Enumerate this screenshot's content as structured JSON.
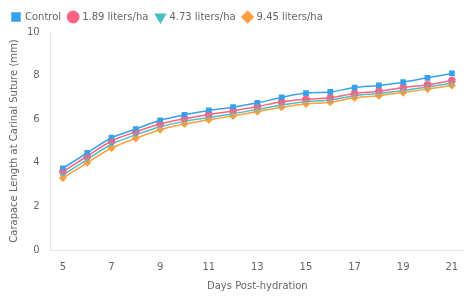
{
  "chart_data": {
    "type": "line",
    "x_label": "Days Post-hydration",
    "y_label": "Carapace Length at Carinal Suture (mm)",
    "x": [
      5,
      6,
      7,
      8,
      9,
      10,
      11,
      12,
      13,
      14,
      15,
      16,
      17,
      18,
      19,
      20,
      21
    ],
    "series": [
      {
        "name": "Control",
        "marker": "square",
        "values": [
          3.75,
          4.45,
          5.15,
          5.55,
          5.95,
          6.2,
          6.4,
          6.55,
          6.75,
          7.0,
          7.2,
          7.25,
          7.45,
          7.55,
          7.7,
          7.9,
          8.1
        ],
        "errors": [
          0.07,
          0.07,
          0.07,
          0.07,
          0.08,
          0.07,
          0.07,
          0.08,
          0.07,
          0.07,
          0.07,
          0.07,
          0.07,
          0.07,
          0.07,
          0.07,
          0.08
        ]
      },
      {
        "name": "1.89 liters/ha",
        "marker": "circle",
        "values": [
          3.6,
          4.3,
          5.0,
          5.42,
          5.78,
          6.02,
          6.22,
          6.38,
          6.58,
          6.8,
          6.92,
          6.98,
          7.18,
          7.28,
          7.45,
          7.58,
          7.78
        ],
        "errors": [
          0.07,
          0.07,
          0.07,
          0.07,
          0.07,
          0.07,
          0.07,
          0.07,
          0.07,
          0.07,
          0.07,
          0.07,
          0.07,
          0.07,
          0.07,
          0.07,
          0.07
        ]
      },
      {
        "name": "4.73 liters/ha",
        "marker": "triangle-down",
        "values": [
          3.45,
          4.15,
          4.85,
          5.28,
          5.65,
          5.9,
          6.08,
          6.25,
          6.45,
          6.65,
          6.8,
          6.88,
          7.08,
          7.18,
          7.32,
          7.48,
          7.65
        ],
        "errors": [
          0.07,
          0.07,
          0.07,
          0.07,
          0.07,
          0.07,
          0.07,
          0.07,
          0.07,
          0.07,
          0.07,
          0.07,
          0.07,
          0.07,
          0.07,
          0.07,
          0.07
        ]
      },
      {
        "name": "9.45 liters/ha",
        "marker": "diamond",
        "values": [
          3.3,
          4.0,
          4.68,
          5.12,
          5.52,
          5.78,
          5.97,
          6.15,
          6.35,
          6.55,
          6.7,
          6.78,
          6.98,
          7.08,
          7.22,
          7.38,
          7.55
        ],
        "errors": [
          0.07,
          0.07,
          0.07,
          0.07,
          0.07,
          0.07,
          0.07,
          0.07,
          0.07,
          0.07,
          0.07,
          0.07,
          0.07,
          0.07,
          0.07,
          0.07,
          0.07
        ]
      }
    ],
    "xlim": [
      4.5,
      21.5
    ],
    "xticks": [
      5,
      7,
      9,
      11,
      13,
      15,
      17,
      19,
      21
    ],
    "ylim": [
      0,
      10
    ],
    "yticks": [
      0,
      2,
      4,
      6,
      8,
      10
    ],
    "grid": false,
    "legend": "upper left"
  }
}
